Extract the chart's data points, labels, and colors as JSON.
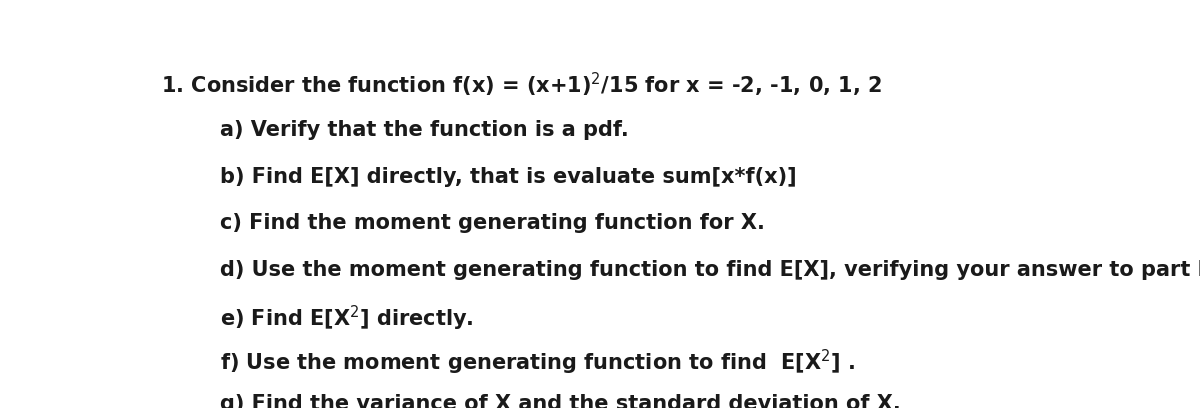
{
  "background_color": "#ffffff",
  "figsize": [
    12.0,
    4.08
  ],
  "dpi": 100,
  "fontsize": 15.0,
  "fontweight": "bold",
  "color": "#1a1a1a",
  "lines": [
    {
      "text": "1. Consider the function f(x) = (x+1)$^2$/15 for x = -2, -1, 0, 1, 2",
      "xf": 0.012,
      "yf": 0.93
    },
    {
      "text": "a) Verify that the function is a pdf.",
      "xf": 0.075,
      "yf": 0.775
    },
    {
      "text": "b) Find E[X] directly, that is evaluate sum[x*f(x)]",
      "xf": 0.075,
      "yf": 0.625
    },
    {
      "text": "c) Find the moment generating function for X.",
      "xf": 0.075,
      "yf": 0.478
    },
    {
      "text": "d) Use the moment generating function to find E[X], verifying your answer to part b).",
      "xf": 0.075,
      "yf": 0.328
    },
    {
      "text": "e) Find E[X$^2$] directly.",
      "xf": 0.075,
      "yf": 0.188
    },
    {
      "text": "f) Use the moment generating function to find  E[X$^2$] .",
      "xf": 0.075,
      "yf": 0.048
    },
    {
      "text": "g) Find the variance of X and the standard deviation of X.",
      "xf": 0.075,
      "yf": -0.098
    }
  ]
}
